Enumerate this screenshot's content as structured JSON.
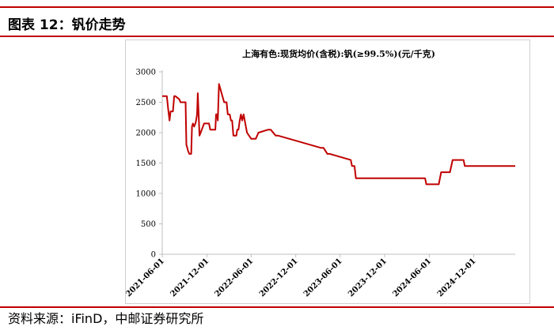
{
  "figure": {
    "title": "图表 12：钒价走势",
    "source": "资料来源：iFinD，中邮证券研究所"
  },
  "colors": {
    "accent": "#c00000",
    "line": "#c00000",
    "axis": "#bfbfbf"
  },
  "chart_data": {
    "type": "line",
    "title": "上海有色:现货均价(含税):钒(≥99.5%)(元/千克)",
    "xlabel": "",
    "ylabel": "",
    "ylim": [
      0,
      3000
    ],
    "yticks": [
      0,
      500,
      1000,
      1500,
      2000,
      2500,
      3000
    ],
    "xlim": [
      "2021-06-01",
      "2025-05-20"
    ],
    "xticks": [
      "2021-06-01",
      "2021-12-01",
      "2022-06-01",
      "2022-12-01",
      "2023-06-01",
      "2023-12-01",
      "2024-06-01",
      "2024-12-01"
    ],
    "grid": false,
    "legend": "none",
    "series": [
      {
        "name": "",
        "x": [
          "2021-06-01",
          "2021-06-20",
          "2021-06-25",
          "2021-07-01",
          "2021-07-05",
          "2021-07-15",
          "2021-07-20",
          "2021-07-25",
          "2021-08-10",
          "2021-08-15",
          "2021-08-20",
          "2021-09-05",
          "2021-09-08",
          "2021-09-12",
          "2021-09-15",
          "2021-09-20",
          "2021-09-25",
          "2021-09-28",
          "2021-10-01",
          "2021-10-05",
          "2021-10-10",
          "2021-10-15",
          "2021-10-18",
          "2021-10-22",
          "2021-10-25",
          "2021-11-01",
          "2021-11-20",
          "2021-11-25",
          "2021-12-10",
          "2021-12-15",
          "2021-12-20",
          "2022-01-05",
          "2022-01-08",
          "2022-01-12",
          "2022-01-15",
          "2022-01-20",
          "2022-02-10",
          "2022-02-12",
          "2022-02-20",
          "2022-02-25",
          "2022-03-05",
          "2022-03-10",
          "2022-03-15",
          "2022-03-20",
          "2022-03-25",
          "2022-04-01",
          "2022-04-05",
          "2022-04-10",
          "2022-04-15",
          "2022-04-20",
          "2022-04-25",
          "2022-05-01",
          "2022-05-15",
          "2022-06-01",
          "2022-06-20",
          "2022-07-01",
          "2022-08-10",
          "2022-08-20",
          "2022-09-10",
          "2022-09-20",
          "2023-03-15",
          "2023-03-25",
          "2023-04-10",
          "2023-04-20",
          "2023-07-15",
          "2023-07-20",
          "2023-07-30",
          "2023-08-05",
          "2024-05-15",
          "2024-05-20",
          "2024-07-10",
          "2024-07-20",
          "2024-08-25",
          "2024-09-05",
          "2024-10-20",
          "2024-10-25",
          "2025-05-20"
        ],
        "values": [
          2600,
          2600,
          2400,
          2200,
          2350,
          2350,
          2600,
          2600,
          2550,
          2500,
          2500,
          2500,
          1800,
          1750,
          1700,
          1650,
          1650,
          1650,
          2100,
          2150,
          2100,
          2150,
          2200,
          2300,
          2650,
          1950,
          2150,
          2150,
          2150,
          2050,
          2050,
          2050,
          2300,
          2300,
          2200,
          2800,
          2500,
          2500,
          2500,
          2300,
          2300,
          2200,
          2200,
          1950,
          1950,
          1950,
          2050,
          2050,
          2200,
          2300,
          2200,
          2300,
          2000,
          1900,
          1900,
          2000,
          2050,
          2050,
          1950,
          1950,
          1750,
          1750,
          1650,
          1650,
          1550,
          1450,
          1450,
          1250,
          1250,
          1150,
          1150,
          1350,
          1350,
          1550,
          1550,
          1450,
          1450
        ]
      }
    ]
  }
}
